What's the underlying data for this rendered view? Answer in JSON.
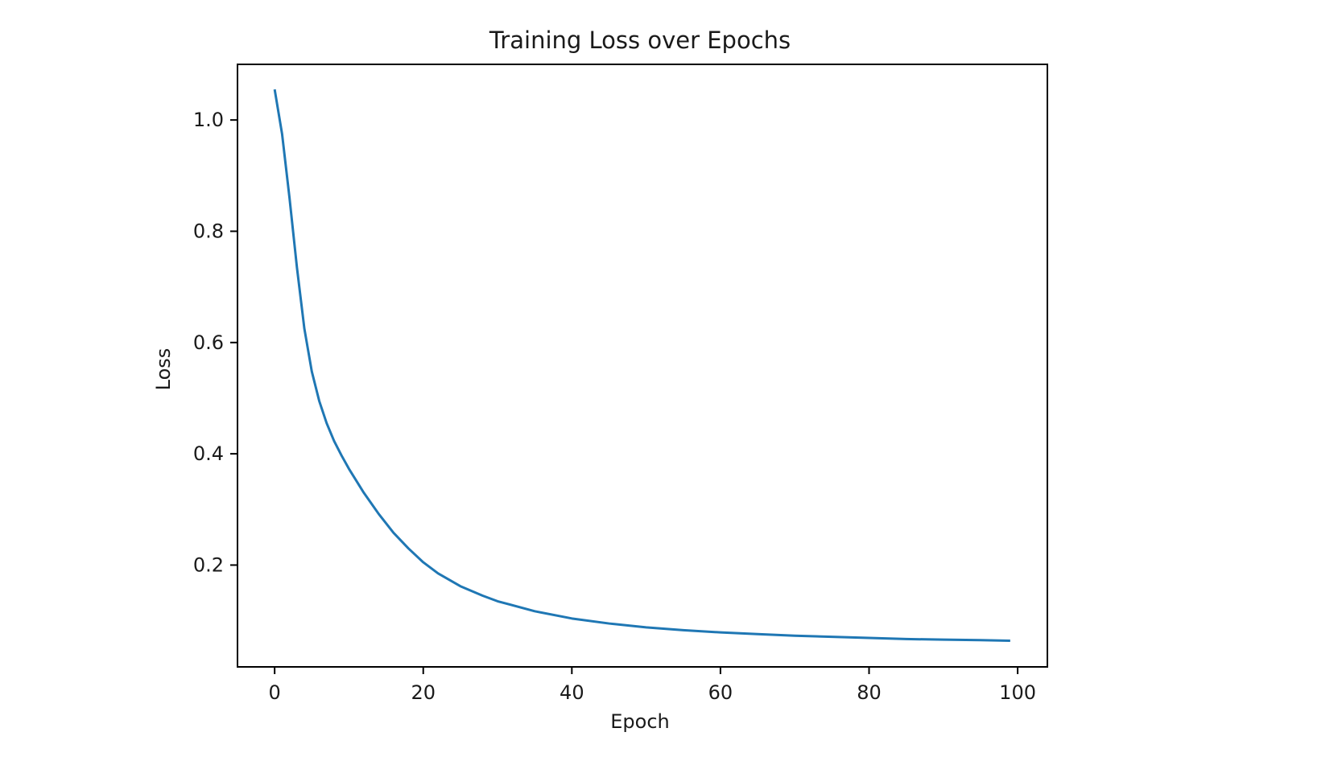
{
  "chart_data": {
    "type": "line",
    "title": "Training Loss over Epochs",
    "xlabel": "Epoch",
    "ylabel": "Loss",
    "xlim": [
      -5,
      104
    ],
    "ylim": [
      0.017,
      1.1
    ],
    "xticks": [
      0,
      20,
      40,
      60,
      80,
      100
    ],
    "yticks": [
      0.2,
      0.4,
      0.6,
      0.8,
      1.0
    ],
    "xtick_labels": [
      "0",
      "20",
      "40",
      "60",
      "80",
      "100"
    ],
    "ytick_labels": [
      "0.2",
      "0.4",
      "0.6",
      "0.8",
      "1.0"
    ],
    "grid": false,
    "legend": "none",
    "series": [
      {
        "color": "#1f77b4",
        "x": [
          0,
          1,
          2,
          3,
          4,
          5,
          6,
          7,
          8,
          9,
          10,
          12,
          14,
          16,
          18,
          20,
          22,
          25,
          28,
          30,
          35,
          40,
          45,
          50,
          55,
          60,
          65,
          70,
          75,
          80,
          85,
          90,
          95,
          99
        ],
        "y": [
          1.055,
          0.975,
          0.86,
          0.735,
          0.625,
          0.548,
          0.495,
          0.455,
          0.423,
          0.397,
          0.373,
          0.33,
          0.292,
          0.258,
          0.23,
          0.205,
          0.185,
          0.162,
          0.145,
          0.135,
          0.117,
          0.104,
          0.095,
          0.088,
          0.083,
          0.079,
          0.076,
          0.073,
          0.071,
          0.069,
          0.067,
          0.066,
          0.065,
          0.064
        ]
      }
    ]
  }
}
